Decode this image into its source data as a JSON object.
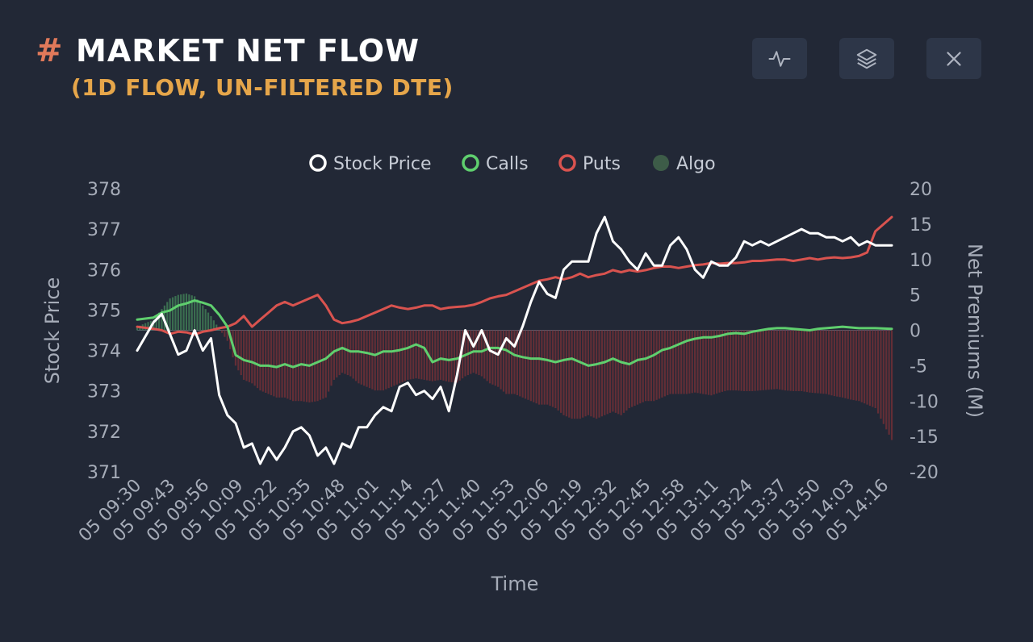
{
  "header": {
    "hash": "#",
    "title": "MARKET NET FLOW",
    "subtitle": "(1D FLOW, UN-FILTERED DTE)"
  },
  "toolbar": {
    "buttons": [
      {
        "icon": "activity-icon"
      },
      {
        "icon": "layers-icon"
      },
      {
        "icon": "close-icon"
      }
    ]
  },
  "chart_data": {
    "type": "line",
    "xlabel": "Time",
    "ylabel_left": "Stock Price",
    "ylabel_right": "Net Premiums (M)",
    "ylim_left": [
      371,
      378
    ],
    "ylim_right": [
      -20,
      20
    ],
    "left_ticks": [
      "378",
      "377",
      "376",
      "375",
      "374",
      "373",
      "372",
      "371"
    ],
    "right_ticks": [
      "20",
      "15",
      "10",
      "5",
      "0",
      "-5",
      "-10",
      "-15",
      "-20"
    ],
    "x_ticks": [
      "05 09:30",
      "05 09:43",
      "05 09:56",
      "05 10:09",
      "05 10:22",
      "05 10:35",
      "05 10:48",
      "05 11:01",
      "05 11:14",
      "05 11:27",
      "05 11:40",
      "05 11:53",
      "05 12:06",
      "05 12:19",
      "05 12:32",
      "05 12:45",
      "05 12:58",
      "05 13:11",
      "05 13:24",
      "05 13:37",
      "05 13:50",
      "05 14:03",
      "05 14:16"
    ],
    "legend": [
      {
        "name": "Stock Price",
        "color": "#ffffff",
        "style": "ring"
      },
      {
        "name": "Calls",
        "color": "#5fcf6e",
        "style": "ring"
      },
      {
        "name": "Puts",
        "color": "#d9534f",
        "style": "ring"
      },
      {
        "name": "Algo",
        "color": "#3d5c48",
        "style": "dot"
      }
    ],
    "colors": {
      "stock": "#ffffff",
      "calls": "#5fcf6e",
      "puts": "#d9534f",
      "algo_positive": "#3f7a55",
      "algo_negative": "#6e2f36",
      "zero_line": "#5a6070"
    },
    "series": [
      {
        "name": "Stock Price",
        "axis": "left",
        "x": [
          0,
          6,
          9,
          12,
          15,
          18,
          21,
          24,
          27,
          30,
          33,
          36,
          39,
          42,
          45,
          48,
          51,
          54,
          57,
          60,
          63,
          66,
          69,
          72,
          75,
          78,
          81,
          84,
          87,
          90,
          93,
          96,
          99,
          102,
          105,
          108,
          111,
          114,
          117,
          120,
          123,
          126,
          129,
          132,
          135,
          138,
          141,
          144,
          147,
          150,
          153,
          156,
          159,
          162,
          165,
          168,
          171,
          174,
          177,
          180,
          183,
          186,
          189,
          192,
          195,
          198,
          201,
          204,
          207,
          210,
          213,
          216,
          219,
          222,
          225,
          228,
          231,
          234,
          237,
          240,
          243,
          246,
          249,
          252,
          255,
          258,
          261,
          264,
          267,
          270,
          276
        ],
        "values": [
          374.0,
          374.7,
          374.9,
          374.4,
          373.9,
          374.0,
          374.5,
          374.0,
          374.3,
          372.9,
          372.4,
          372.2,
          371.6,
          371.7,
          371.2,
          371.6,
          371.3,
          371.6,
          372.0,
          372.1,
          371.9,
          371.4,
          371.6,
          371.2,
          371.7,
          371.6,
          372.1,
          372.1,
          372.4,
          372.6,
          372.5,
          373.1,
          373.2,
          372.9,
          373.0,
          372.8,
          373.1,
          372.5,
          373.4,
          374.5,
          374.1,
          374.5,
          374.0,
          373.9,
          374.3,
          374.1,
          374.6,
          375.2,
          375.7,
          375.4,
          375.3,
          376.0,
          376.2,
          376.2,
          376.2,
          376.9,
          377.3,
          376.7,
          376.5,
          376.2,
          376.0,
          376.4,
          376.1,
          376.1,
          376.6,
          376.8,
          376.5,
          376.0,
          375.8,
          376.2,
          376.1,
          376.1,
          376.3,
          376.7,
          376.6,
          376.7,
          376.6,
          376.7,
          376.8,
          376.9,
          377.0,
          376.9,
          376.9,
          376.8,
          376.8,
          376.7,
          376.8,
          376.6,
          376.7,
          376.6,
          376.6
        ]
      },
      {
        "name": "Calls",
        "axis": "right",
        "x": [
          0,
          6,
          9,
          12,
          15,
          18,
          21,
          24,
          27,
          30,
          33,
          36,
          39,
          42,
          45,
          48,
          51,
          54,
          57,
          60,
          63,
          66,
          69,
          72,
          75,
          78,
          81,
          84,
          87,
          90,
          93,
          96,
          99,
          102,
          105,
          108,
          111,
          114,
          117,
          120,
          123,
          126,
          129,
          132,
          135,
          138,
          141,
          144,
          147,
          150,
          153,
          156,
          159,
          162,
          165,
          168,
          171,
          174,
          177,
          180,
          183,
          186,
          189,
          192,
          195,
          198,
          201,
          204,
          207,
          210,
          213,
          216,
          219,
          222,
          225,
          228,
          231,
          234,
          237,
          240,
          243,
          246,
          249,
          252,
          255,
          258,
          261,
          264,
          267,
          270,
          276
        ],
        "values": [
          1.5,
          1.8,
          2.5,
          2.8,
          3.5,
          3.8,
          4.2,
          3.9,
          3.5,
          2.2,
          0.5,
          -3.5,
          -4.2,
          -4.5,
          -5.0,
          -5.0,
          -5.2,
          -4.8,
          -5.2,
          -4.8,
          -5.0,
          -4.5,
          -4.0,
          -3.0,
          -2.5,
          -3.0,
          -3.0,
          -3.2,
          -3.5,
          -3.0,
          -3.0,
          -2.8,
          -2.5,
          -2.0,
          -2.5,
          -4.5,
          -4.0,
          -4.2,
          -4.0,
          -3.5,
          -3.0,
          -3.0,
          -2.5,
          -2.5,
          -2.8,
          -3.5,
          -3.8,
          -4.0,
          -4.0,
          -4.2,
          -4.5,
          -4.2,
          -4.0,
          -4.5,
          -5.0,
          -4.8,
          -4.5,
          -4.0,
          -4.5,
          -4.8,
          -4.2,
          -4.0,
          -3.5,
          -2.8,
          -2.5,
          -2.0,
          -1.5,
          -1.2,
          -1.0,
          -1.0,
          -0.8,
          -0.5,
          -0.4,
          -0.5,
          -0.2,
          0.0,
          0.2,
          0.3,
          0.3,
          0.2,
          0.1,
          0.0,
          0.2,
          0.3,
          0.4,
          0.5,
          0.4,
          0.3,
          0.3,
          0.3,
          0.2
        ]
      },
      {
        "name": "Puts",
        "axis": "right",
        "x": [
          0,
          6,
          9,
          12,
          15,
          18,
          21,
          24,
          27,
          30,
          33,
          36,
          39,
          42,
          45,
          48,
          51,
          54,
          57,
          60,
          63,
          66,
          69,
          72,
          75,
          78,
          81,
          84,
          87,
          90,
          93,
          96,
          99,
          102,
          105,
          108,
          111,
          114,
          117,
          120,
          123,
          126,
          129,
          132,
          135,
          138,
          141,
          144,
          147,
          150,
          153,
          156,
          159,
          162,
          165,
          168,
          171,
          174,
          177,
          180,
          183,
          186,
          189,
          192,
          195,
          198,
          201,
          204,
          207,
          210,
          213,
          216,
          219,
          222,
          225,
          228,
          231,
          234,
          237,
          240,
          243,
          246,
          249,
          252,
          255,
          258,
          261,
          264,
          267,
          270,
          276
        ],
        "values": [
          0.5,
          0.2,
          0.0,
          -0.5,
          -0.2,
          -0.3,
          -0.6,
          -0.2,
          0.0,
          0.3,
          0.5,
          1.0,
          2.0,
          0.5,
          1.5,
          2.5,
          3.5,
          4.0,
          3.5,
          4.0,
          4.5,
          5.0,
          3.5,
          1.5,
          1.0,
          1.2,
          1.5,
          2.0,
          2.5,
          3.0,
          3.5,
          3.2,
          3.0,
          3.2,
          3.5,
          3.5,
          3.0,
          3.2,
          3.3,
          3.4,
          3.6,
          4.0,
          4.5,
          4.8,
          5.0,
          5.5,
          6.0,
          6.5,
          7.0,
          7.2,
          7.5,
          7.2,
          7.5,
          8.0,
          7.5,
          7.8,
          8.0,
          8.5,
          8.2,
          8.5,
          8.3,
          8.5,
          8.8,
          9.0,
          9.0,
          8.8,
          9.0,
          9.2,
          9.3,
          9.5,
          9.4,
          9.5,
          9.5,
          9.6,
          9.8,
          9.8,
          9.9,
          10.0,
          10.0,
          9.8,
          10.0,
          10.2,
          10.0,
          10.2,
          10.3,
          10.2,
          10.3,
          10.5,
          11.0,
          14.0,
          16.0
        ]
      },
      {
        "name": "Algo",
        "axis": "right",
        "x": [
          0,
          6,
          9,
          12,
          15,
          18,
          21,
          24,
          27,
          30,
          33,
          36,
          39,
          42,
          45,
          48,
          51,
          54,
          57,
          60,
          63,
          66,
          69,
          72,
          75,
          78,
          81,
          84,
          87,
          90,
          93,
          96,
          99,
          102,
          105,
          108,
          111,
          114,
          117,
          120,
          123,
          126,
          129,
          132,
          135,
          138,
          141,
          144,
          147,
          150,
          153,
          156,
          159,
          162,
          165,
          168,
          171,
          174,
          177,
          180,
          183,
          186,
          189,
          192,
          195,
          198,
          201,
          204,
          207,
          210,
          213,
          216,
          219,
          222,
          225,
          228,
          231,
          234,
          237,
          240,
          243,
          246,
          249,
          252,
          255,
          258,
          261,
          264,
          267,
          270,
          276
        ],
        "values": [
          0.5,
          1.5,
          3.0,
          4.5,
          5.0,
          5.2,
          4.8,
          3.5,
          2.0,
          0.2,
          -1.5,
          -5.0,
          -7.0,
          -7.5,
          -8.5,
          -9.0,
          -9.5,
          -9.5,
          -10.0,
          -10.0,
          -10.2,
          -10.0,
          -9.5,
          -7.0,
          -6.0,
          -6.5,
          -7.5,
          -8.0,
          -8.5,
          -8.5,
          -8.0,
          -7.5,
          -7.0,
          -6.8,
          -7.0,
          -7.2,
          -7.0,
          -7.3,
          -7.4,
          -6.5,
          -6.0,
          -6.5,
          -7.5,
          -8.0,
          -9.0,
          -9.0,
          -9.5,
          -10.0,
          -10.5,
          -10.5,
          -11.0,
          -12.0,
          -12.5,
          -12.5,
          -12.0,
          -12.5,
          -12.0,
          -11.5,
          -12.0,
          -11.0,
          -10.5,
          -10.0,
          -10.0,
          -9.5,
          -9.0,
          -9.0,
          -9.0,
          -8.8,
          -9.0,
          -9.2,
          -8.8,
          -8.5,
          -8.5,
          -8.6,
          -8.6,
          -8.5,
          -8.4,
          -8.3,
          -8.5,
          -8.6,
          -8.6,
          -8.8,
          -8.9,
          -9.0,
          -9.3,
          -9.5,
          -9.8,
          -10.0,
          -10.5,
          -11.0,
          -15.5
        ]
      }
    ]
  }
}
